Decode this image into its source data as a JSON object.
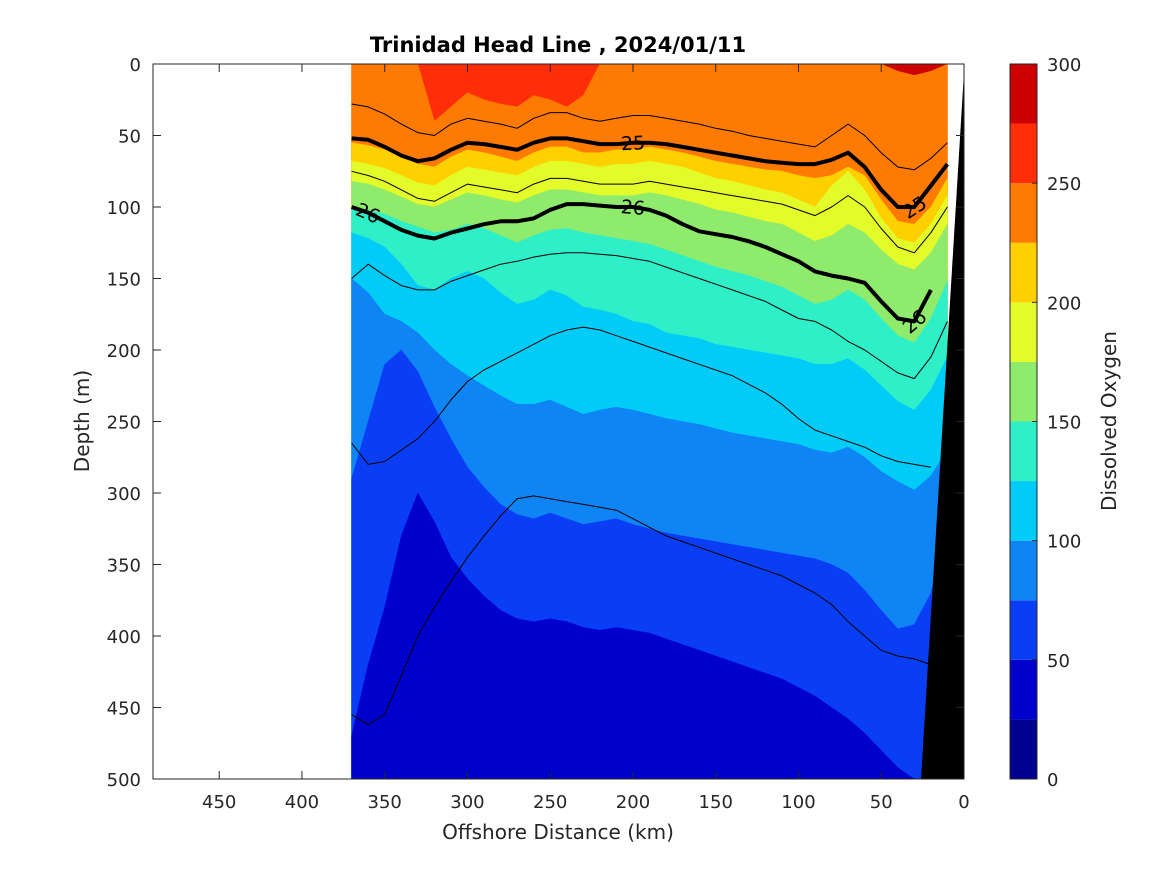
{
  "chart_data": {
    "type": "contourf",
    "title": "Trinidad Head Line , 2024/01/11",
    "xlabel": "Offshore Distance (km)",
    "ylabel": "Depth (m)",
    "colorbar_label": "Dissolved Oxygen",
    "xlim": [
      490,
      0
    ],
    "ylim": [
      500,
      0
    ],
    "x_reversed": true,
    "y_reversed": true,
    "xticks": [
      450,
      400,
      350,
      300,
      250,
      200,
      150,
      100,
      50,
      0
    ],
    "yticks": [
      0,
      50,
      100,
      150,
      200,
      250,
      300,
      350,
      400,
      450,
      500
    ],
    "data_extent_km": [
      370,
      10
    ],
    "colorbar": {
      "min": 0,
      "max": 300,
      "ticks": [
        0,
        50,
        100,
        150,
        200,
        250,
        300
      ],
      "levels": [
        0,
        25,
        50,
        75,
        100,
        125,
        150,
        175,
        200,
        225,
        250,
        275,
        300
      ],
      "colors": [
        "#00008F",
        "#0000CC",
        "#0A3EF5",
        "#0F84F5",
        "#00CCF7",
        "#2EEFC8",
        "#8EEB6B",
        "#E3FB29",
        "#FFD000",
        "#FF7A00",
        "#FF2E08",
        "#CC0000"
      ]
    },
    "x": [
      370,
      360,
      350,
      340,
      330,
      320,
      310,
      300,
      290,
      280,
      270,
      260,
      250,
      240,
      230,
      220,
      210,
      200,
      190,
      180,
      170,
      160,
      150,
      140,
      130,
      120,
      110,
      100,
      90,
      80,
      70,
      60,
      50,
      40,
      30,
      20,
      10
    ],
    "oxygen_boundaries": [
      {
        "level": 275,
        "depth": [
          0,
          0,
          0,
          0,
          0,
          0,
          0,
          0,
          0,
          0,
          0,
          0,
          0,
          0,
          0,
          0,
          0,
          0,
          0,
          0,
          0,
          0,
          0,
          0,
          0,
          0,
          0,
          0,
          0,
          0,
          0,
          0,
          0,
          10,
          12,
          10,
          0
        ]
      },
      {
        "level": 250,
        "depth": [
          0,
          0,
          0,
          0,
          0,
          40,
          30,
          20,
          25,
          28,
          30,
          22,
          25,
          30,
          22,
          0,
          0,
          0,
          0,
          0,
          0,
          0,
          0,
          0,
          0,
          0,
          0,
          0,
          0,
          0,
          0,
          0,
          0,
          5,
          8,
          5,
          0
        ]
      },
      {
        "level": 225,
        "depth": [
          55,
          57,
          60,
          65,
          70,
          72,
          65,
          60,
          62,
          65,
          68,
          62,
          58,
          58,
          62,
          62,
          60,
          60,
          58,
          60,
          62,
          65,
          68,
          70,
          72,
          74,
          75,
          78,
          80,
          78,
          72,
          78,
          95,
          110,
          112,
          100,
          80
        ]
      },
      {
        "level": 200,
        "depth": [
          68,
          70,
          73,
          78,
          83,
          85,
          78,
          72,
          74,
          76,
          78,
          72,
          68,
          68,
          70,
          72,
          70,
          70,
          68,
          70,
          72,
          76,
          80,
          82,
          85,
          88,
          90,
          95,
          100,
          85,
          75,
          88,
          108,
          122,
          125,
          112,
          92
        ]
      },
      {
        "level": 175,
        "depth": [
          82,
          84,
          88,
          93,
          98,
          100,
          95,
          90,
          92,
          95,
          97,
          92,
          88,
          88,
          90,
          92,
          92,
          92,
          90,
          92,
          95,
          98,
          102,
          104,
          107,
          110,
          112,
          118,
          124,
          120,
          112,
          118,
          130,
          140,
          144,
          132,
          112
        ]
      },
      {
        "level": 150,
        "depth": [
          100,
          102,
          105,
          110,
          114,
          118,
          116,
          112,
          115,
          120,
          125,
          120,
          116,
          115,
          118,
          120,
          122,
          124,
          126,
          130,
          134,
          138,
          142,
          145,
          148,
          152,
          156,
          162,
          168,
          165,
          158,
          165,
          178,
          190,
          195,
          178,
          152
        ]
      },
      {
        "level": 125,
        "depth": [
          118,
          122,
          128,
          140,
          155,
          158,
          150,
          145,
          150,
          160,
          168,
          165,
          158,
          162,
          170,
          172,
          175,
          180,
          182,
          188,
          190,
          192,
          196,
          198,
          200,
          202,
          204,
          206,
          210,
          210,
          206,
          214,
          225,
          236,
          242,
          228,
          205
        ]
      },
      {
        "level": 100,
        "depth": [
          150,
          160,
          175,
          180,
          188,
          200,
          210,
          218,
          225,
          232,
          238,
          238,
          235,
          240,
          245,
          242,
          240,
          242,
          245,
          248,
          250,
          252,
          255,
          258,
          260,
          262,
          264,
          266,
          270,
          272,
          268,
          275,
          285,
          292,
          298,
          288,
          270
        ]
      },
      {
        "level": 75,
        "depth": [
          290,
          250,
          210,
          200,
          215,
          240,
          262,
          282,
          296,
          308,
          315,
          318,
          314,
          318,
          322,
          320,
          318,
          322,
          325,
          328,
          330,
          332,
          334,
          336,
          338,
          340,
          342,
          344,
          346,
          350,
          356,
          368,
          382,
          395,
          392,
          370,
          330
        ]
      },
      {
        "level": 50,
        "depth": [
          470,
          420,
          380,
          330,
          300,
          320,
          345,
          360,
          372,
          382,
          388,
          390,
          388,
          390,
          394,
          396,
          394,
          396,
          398,
          402,
          406,
          410,
          414,
          418,
          422,
          426,
          430,
          436,
          442,
          450,
          458,
          468,
          480,
          492,
          500,
          500,
          500
        ]
      },
      {
        "level": 25,
        "depth": [
          500,
          500,
          500,
          500,
          500,
          500,
          500,
          500,
          500,
          500,
          500,
          500,
          500,
          500,
          500,
          500,
          500,
          500,
          500,
          500,
          500,
          500,
          500,
          500,
          500,
          500,
          500,
          500,
          500,
          500,
          500,
          500,
          500,
          500,
          500,
          500,
          500
        ]
      }
    ],
    "density_contours": [
      {
        "level": 24.5,
        "x": [
          370,
          360,
          350,
          340,
          330,
          320,
          310,
          300,
          290,
          280,
          270,
          260,
          250,
          240,
          230,
          220,
          210,
          200,
          190,
          180,
          170,
          160,
          150,
          140,
          130,
          120,
          110,
          100,
          90,
          80,
          70,
          60,
          50,
          40,
          30,
          20,
          10
        ],
        "depth": [
          28,
          30,
          35,
          42,
          48,
          50,
          42,
          38,
          40,
          42,
          45,
          38,
          34,
          34,
          38,
          40,
          38,
          36,
          36,
          38,
          40,
          42,
          45,
          47,
          50,
          52,
          54,
          56,
          58,
          50,
          42,
          50,
          62,
          72,
          74,
          66,
          55
        ]
      },
      {
        "level": 25,
        "labeled": true,
        "x": [
          370,
          360,
          350,
          340,
          330,
          320,
          310,
          300,
          290,
          280,
          270,
          260,
          250,
          240,
          230,
          220,
          210,
          200,
          190,
          180,
          170,
          160,
          150,
          140,
          130,
          120,
          110,
          100,
          90,
          80,
          70,
          60,
          50,
          40,
          30,
          20,
          10
        ],
        "depth": [
          52,
          53,
          58,
          64,
          68,
          66,
          60,
          55,
          56,
          58,
          60,
          55,
          52,
          52,
          54,
          56,
          56,
          55,
          55,
          56,
          58,
          60,
          62,
          64,
          66,
          68,
          69,
          70,
          70,
          67,
          62,
          72,
          88,
          100,
          100,
          85,
          70
        ]
      },
      {
        "level": 25.5,
        "x": [
          370,
          360,
          350,
          340,
          330,
          320,
          310,
          300,
          290,
          280,
          270,
          260,
          250,
          240,
          230,
          220,
          210,
          200,
          190,
          180,
          170,
          160,
          150,
          140,
          130,
          120,
          110,
          100,
          90,
          80,
          70,
          60,
          50,
          40,
          30,
          20,
          10
        ],
        "depth": [
          75,
          78,
          82,
          88,
          94,
          96,
          90,
          84,
          86,
          88,
          90,
          84,
          80,
          80,
          82,
          84,
          84,
          84,
          82,
          84,
          86,
          88,
          90,
          92,
          94,
          96,
          98,
          102,
          106,
          100,
          92,
          100,
          115,
          128,
          132,
          118,
          100
        ]
      },
      {
        "level": 26,
        "labeled": true,
        "x": [
          370,
          360,
          350,
          340,
          330,
          320,
          310,
          300,
          290,
          280,
          270,
          260,
          250,
          240,
          230,
          220,
          210,
          200,
          190,
          180,
          170,
          160,
          150,
          140,
          130,
          120,
          110,
          100,
          90,
          80,
          70,
          60,
          50,
          40,
          30,
          20
        ],
        "depth": [
          100,
          104,
          110,
          116,
          120,
          122,
          118,
          115,
          112,
          110,
          110,
          108,
          102,
          98,
          98,
          99,
          100,
          100,
          102,
          106,
          112,
          117,
          119,
          121,
          124,
          128,
          133,
          138,
          145,
          148,
          150,
          153,
          166,
          178,
          180,
          158
        ]
      },
      {
        "level": 26.5,
        "x": [
          370,
          360,
          350,
          340,
          330,
          320,
          310,
          300,
          290,
          280,
          270,
          260,
          250,
          240,
          230,
          220,
          210,
          200,
          190,
          180,
          170,
          160,
          150,
          140,
          130,
          120,
          110,
          100,
          90,
          80,
          70,
          60,
          50,
          40,
          30,
          20,
          10
        ],
        "depth": [
          150,
          140,
          148,
          155,
          158,
          158,
          152,
          148,
          144,
          140,
          138,
          135,
          133,
          132,
          132,
          133,
          134,
          136,
          138,
          142,
          146,
          150,
          154,
          158,
          162,
          166,
          172,
          178,
          180,
          186,
          194,
          200,
          208,
          216,
          220,
          205,
          180
        ]
      },
      {
        "level": 27,
        "x": [
          370,
          360,
          350,
          340,
          330,
          320,
          310,
          300,
          290,
          280,
          270,
          260,
          250,
          240,
          230,
          220,
          210,
          200,
          190,
          180,
          170,
          160,
          150,
          140,
          130,
          120,
          110,
          100,
          90,
          80,
          70,
          60,
          50,
          40,
          30,
          20
        ],
        "depth": [
          265,
          280,
          278,
          270,
          262,
          250,
          235,
          222,
          214,
          208,
          202,
          196,
          190,
          186,
          184,
          186,
          190,
          194,
          198,
          202,
          206,
          210,
          214,
          218,
          224,
          230,
          238,
          248,
          256,
          260,
          264,
          268,
          274,
          278,
          280,
          282
        ]
      },
      {
        "level": 27.5,
        "x": [
          370,
          360,
          350,
          340,
          330,
          320,
          310,
          300,
          290,
          280,
          270,
          260,
          250,
          240,
          230,
          220,
          210,
          200,
          190,
          180,
          170,
          160,
          150,
          140,
          130,
          120,
          110,
          100,
          90,
          80,
          70,
          60,
          50,
          40,
          30,
          20
        ],
        "depth": [
          455,
          462,
          455,
          428,
          400,
          380,
          362,
          345,
          330,
          316,
          304,
          302,
          304,
          306,
          308,
          310,
          312,
          318,
          324,
          330,
          334,
          338,
          342,
          346,
          350,
          354,
          358,
          364,
          370,
          378,
          390,
          400,
          410,
          414,
          416,
          420
        ]
      }
    ]
  }
}
